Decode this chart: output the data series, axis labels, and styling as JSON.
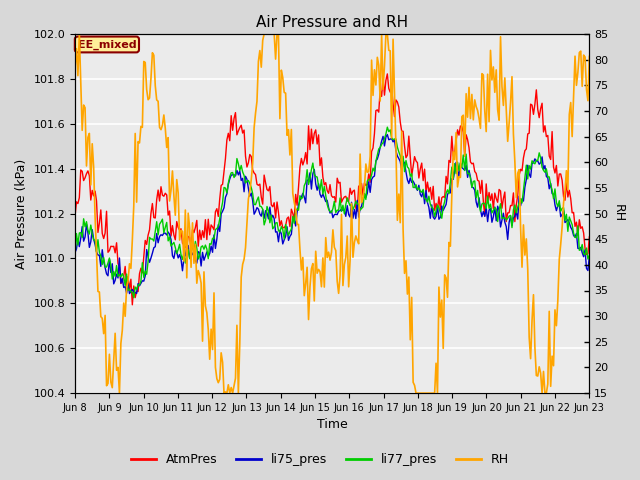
{
  "title": "Air Pressure and RH",
  "xlabel": "Time",
  "ylabel_left": "Air Pressure (kPa)",
  "ylabel_right": "RH",
  "ylim_left": [
    100.4,
    102.0
  ],
  "ylim_right": [
    15,
    85
  ],
  "yticks_left": [
    100.4,
    100.6,
    100.8,
    101.0,
    101.2,
    101.4,
    101.6,
    101.8,
    102.0
  ],
  "yticks_right": [
    15,
    20,
    25,
    30,
    35,
    40,
    45,
    50,
    55,
    60,
    65,
    70,
    75,
    80,
    85
  ],
  "xtick_labels": [
    "Jun 8",
    "Jun 9",
    "Jun 10",
    "Jun 11",
    "Jun 12",
    "Jun 13",
    "Jun 14",
    "Jun 15",
    "Jun 16",
    "Jun 17",
    "Jun 18",
    "Jun 19",
    "Jun 20",
    "Jun 21",
    "Jun 22",
    "Jun 23"
  ],
  "annotation_text": "EE_mixed",
  "annotation_color": "#8B0000",
  "annotation_bg": "#FFEE99",
  "annotation_border": "#8B0000",
  "colors": {
    "AtmPres": "#FF0000",
    "li75_pres": "#0000CC",
    "li77_pres": "#00CC00",
    "RH": "#FFA500"
  },
  "bg_color": "#D8D8D8",
  "plot_bg": "#EBEBEB",
  "grid_color": "#FFFFFF",
  "linewidth_pres": 1.0,
  "linewidth_rh": 1.2,
  "figwidth": 6.4,
  "figheight": 4.8,
  "dpi": 100
}
